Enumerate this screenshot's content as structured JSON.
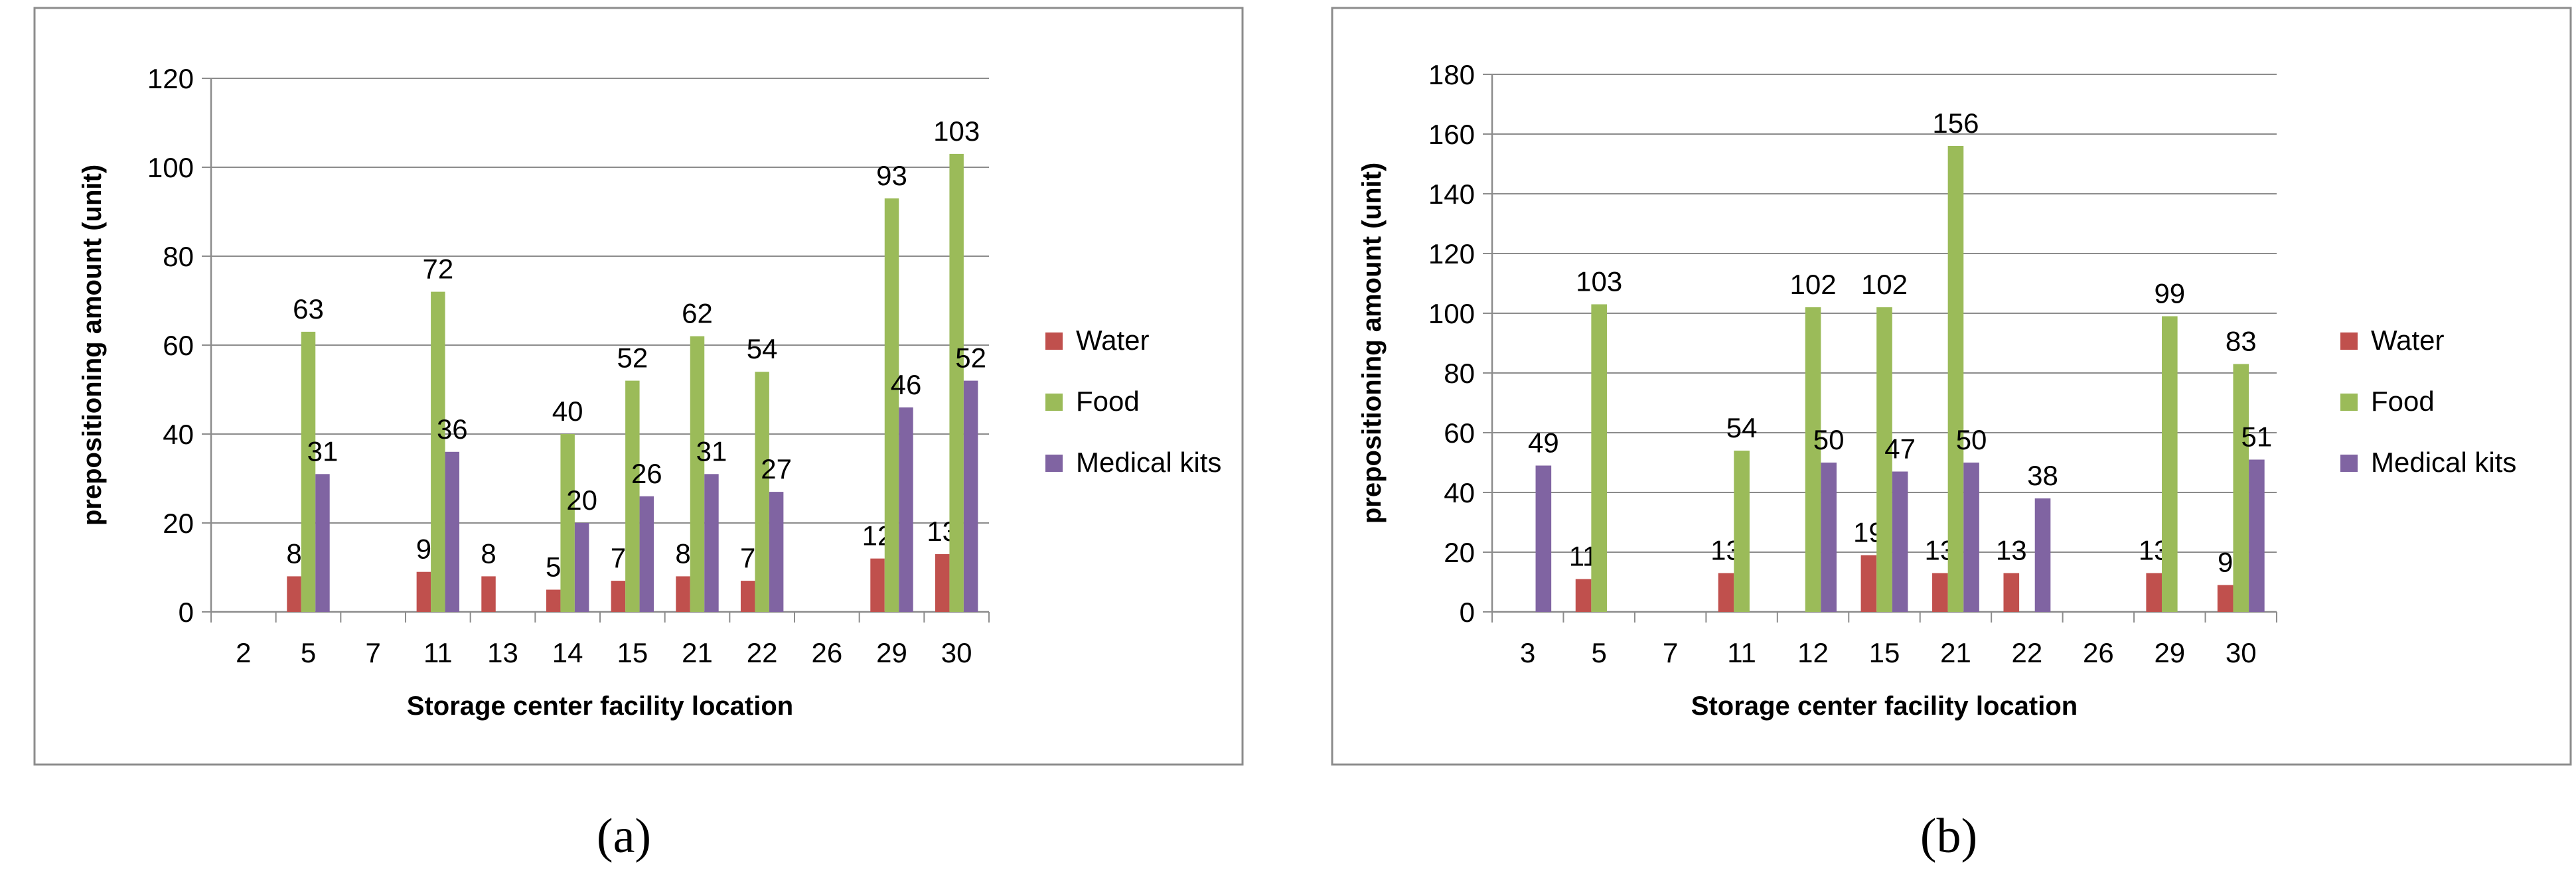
{
  "figure": {
    "panel_labels": [
      "(a)",
      "(b)"
    ]
  },
  "colors": {
    "Water": "#c0504d",
    "Food": "#9bbb59",
    "Medical kits": "#8064a2",
    "grid": "#8c8c8c",
    "frame": "#8c8c8c"
  },
  "chart_data": [
    {
      "type": "bar",
      "panel": "(a)",
      "title": "",
      "xlabel": "Storage center facility location",
      "ylabel": "prepositioning amount (unit)",
      "ylim": [
        0,
        120
      ],
      "yticks": [
        0,
        20,
        40,
        60,
        80,
        100,
        120
      ],
      "legend_position": "right",
      "grid": true,
      "categories": [
        "2",
        "5",
        "7",
        "11",
        "13",
        "14",
        "15",
        "21",
        "22",
        "26",
        "29",
        "30"
      ],
      "series": [
        {
          "name": "Water",
          "values": [
            null,
            8,
            null,
            9,
            8,
            5,
            7,
            8,
            7,
            null,
            12,
            13
          ]
        },
        {
          "name": "Food",
          "values": [
            null,
            63,
            null,
            72,
            null,
            40,
            52,
            62,
            54,
            null,
            93,
            103
          ]
        },
        {
          "name": "Medical kits",
          "values": [
            null,
            31,
            null,
            36,
            null,
            20,
            26,
            31,
            27,
            null,
            46,
            52
          ]
        }
      ]
    },
    {
      "type": "bar",
      "panel": "(b)",
      "title": "",
      "xlabel": "Storage center facility location",
      "ylabel": "prepositioning amount (unit)",
      "ylim": [
        0,
        180
      ],
      "yticks": [
        0,
        20,
        40,
        60,
        80,
        100,
        120,
        140,
        160,
        180
      ],
      "legend_position": "right",
      "grid": true,
      "categories": [
        "3",
        "5",
        "7",
        "11",
        "12",
        "15",
        "21",
        "22",
        "26",
        "29",
        "30"
      ],
      "series": [
        {
          "name": "Water",
          "values": [
            null,
            11,
            null,
            13,
            null,
            19,
            13,
            13,
            null,
            13,
            9
          ]
        },
        {
          "name": "Food",
          "values": [
            null,
            103,
            null,
            54,
            102,
            102,
            156,
            null,
            null,
            99,
            83
          ]
        },
        {
          "name": "Medical kits",
          "values": [
            49,
            null,
            null,
            null,
            50,
            47,
            50,
            38,
            null,
            null,
            51
          ]
        }
      ]
    }
  ]
}
